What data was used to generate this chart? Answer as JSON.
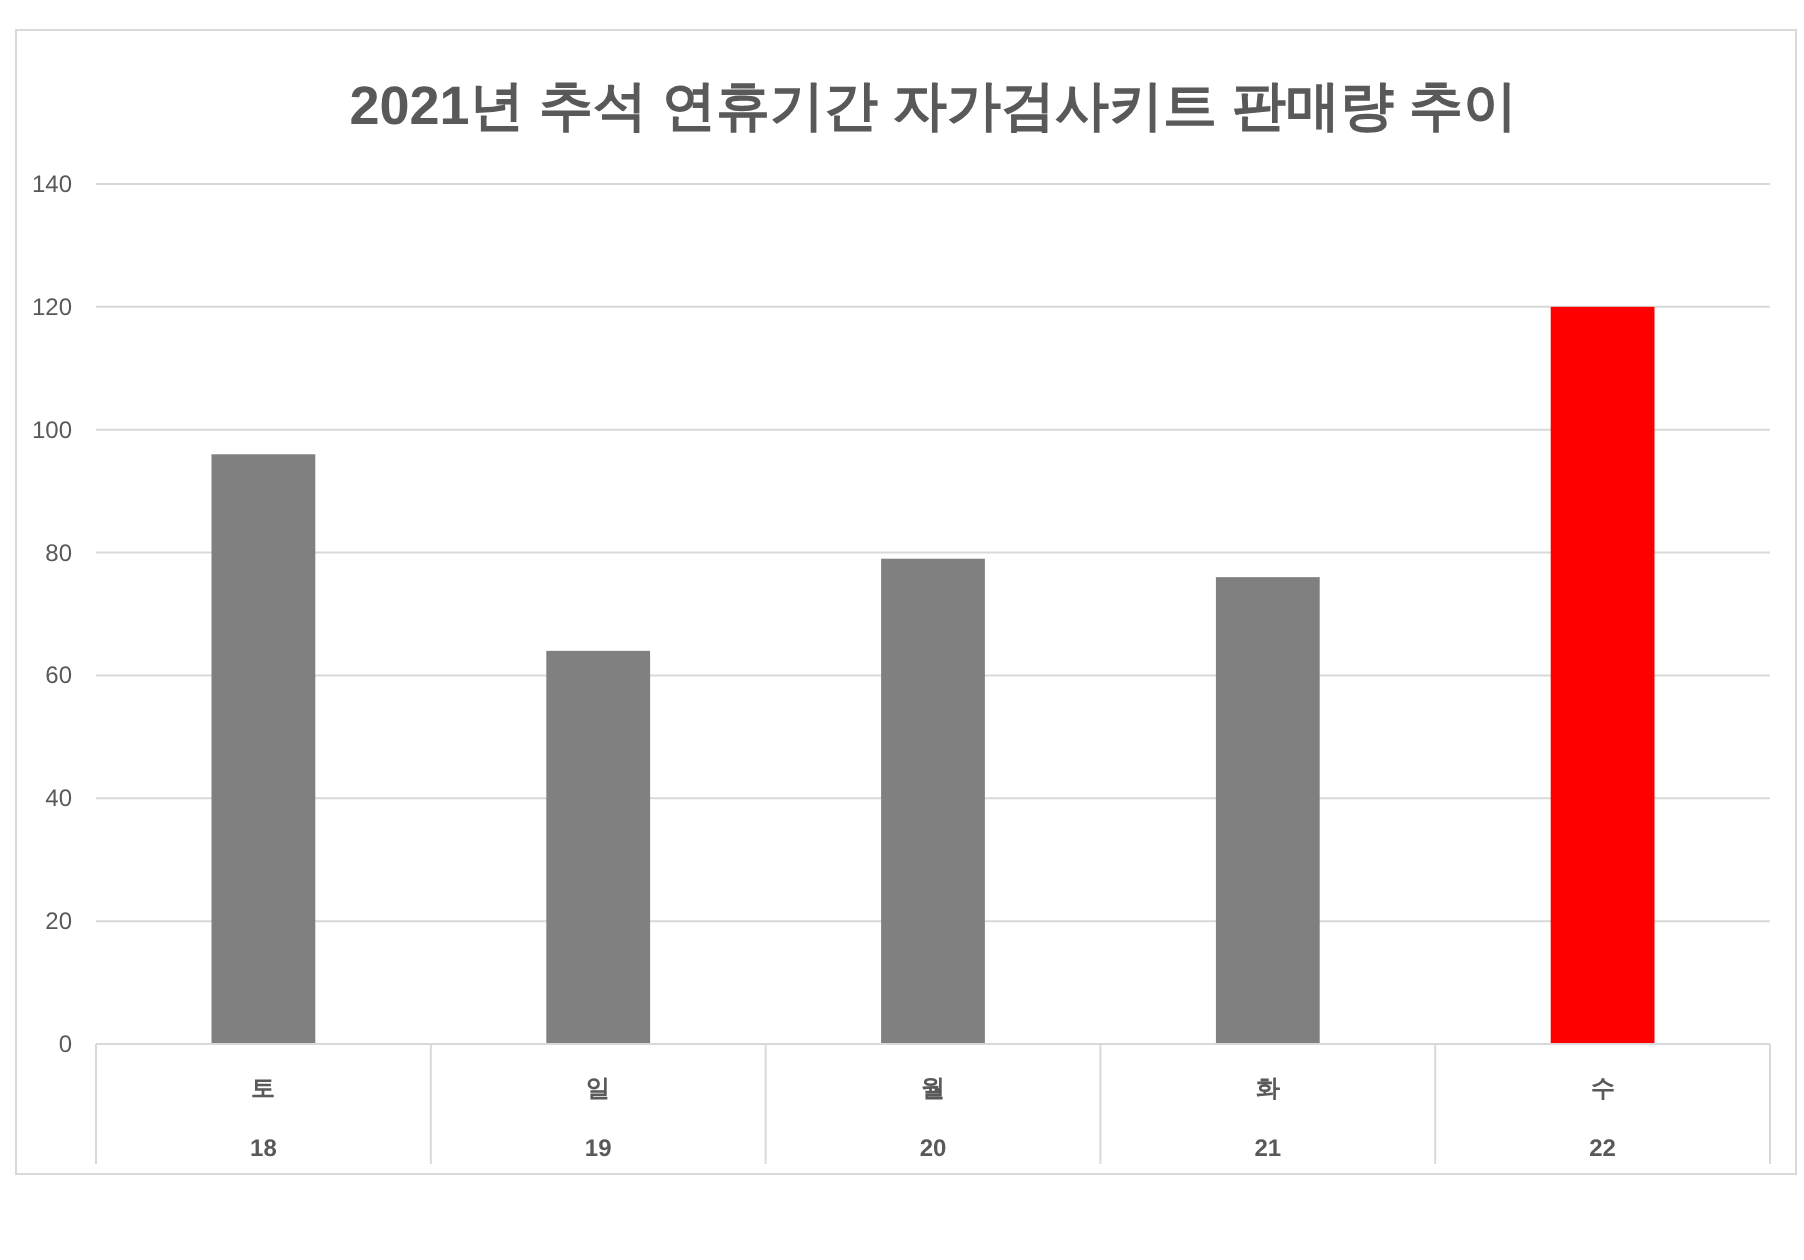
{
  "chart_data": {
    "type": "bar",
    "title": "2021년 추석 연휴기간 자가검사키트 판매량 추이",
    "categories": [
      "토\n18",
      "일\n19",
      "월\n20",
      "화\n21",
      "수\n22"
    ],
    "values": [
      96,
      64,
      79,
      76,
      120
    ],
    "colors": [
      "#808080",
      "#808080",
      "#808080",
      "#808080",
      "#ff0000"
    ],
    "ylim": [
      0,
      140
    ],
    "yticks": [
      0,
      20,
      40,
      60,
      80,
      100,
      120,
      140
    ],
    "grid": "y"
  }
}
